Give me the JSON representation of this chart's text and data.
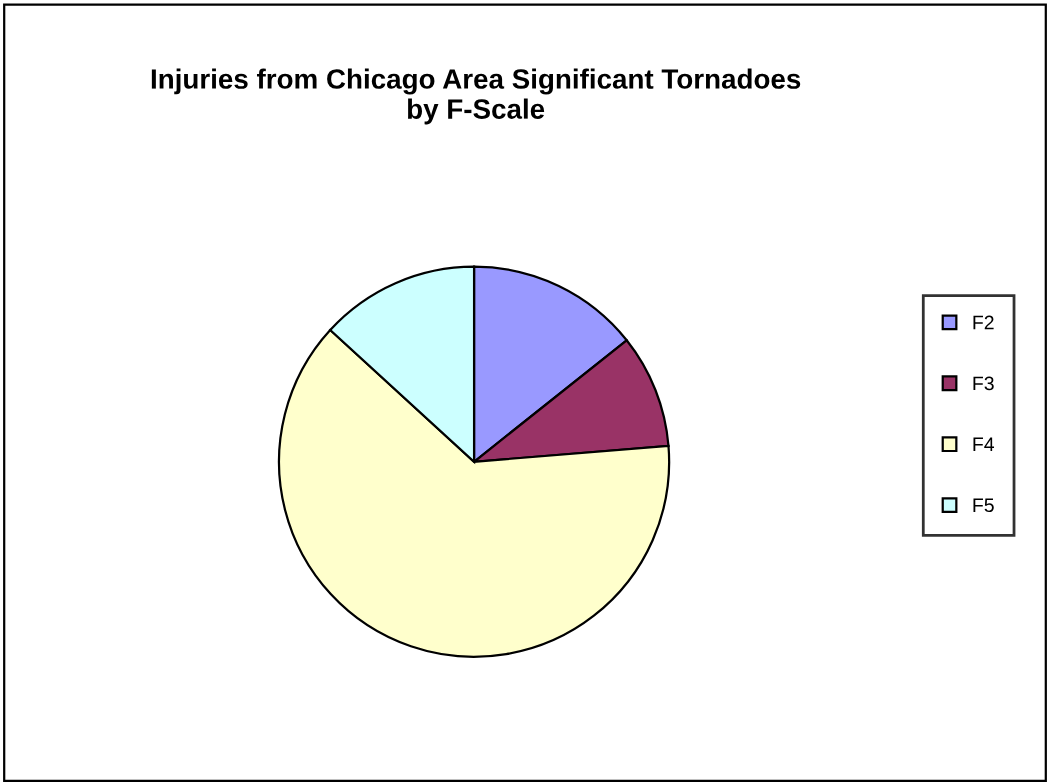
{
  "chart_data": {
    "type": "pie",
    "title": "Injuries from Chicago Area Significant Tornadoes\nby F-Scale",
    "categories": [
      "F2",
      "F3",
      "F4",
      "F5"
    ],
    "values": [
      14.3,
      9.4,
      63.1,
      13.2
    ],
    "colors": [
      "#9999ff",
      "#993366",
      "#ffffcc",
      "#ccffff"
    ],
    "legend": "right"
  }
}
